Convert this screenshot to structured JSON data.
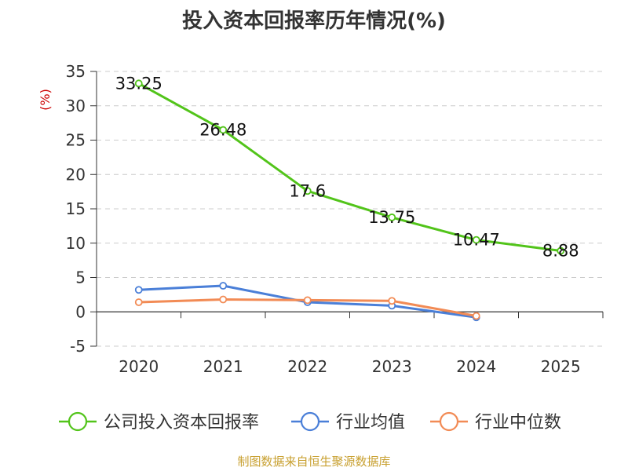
{
  "chart_data": {
    "type": "line",
    "title": "投入资本回报率历年情况(%)",
    "ylabel": "(%)",
    "categories": [
      "2020",
      "2021",
      "2022",
      "2023",
      "2024",
      "2025"
    ],
    "ylim": [
      -5,
      35
    ],
    "yticks": [
      -5,
      0,
      5,
      10,
      15,
      20,
      25,
      30,
      35
    ],
    "grid": true,
    "legend_position": "bottom",
    "series": [
      {
        "name": "公司投入资本回报率",
        "color": "#52c41a",
        "values": [
          33.25,
          26.48,
          17.6,
          13.75,
          10.47,
          8.88
        ],
        "show_labels": true
      },
      {
        "name": "行业均值",
        "color": "#4a7fd8",
        "values": [
          3.2,
          3.8,
          1.4,
          0.9,
          -0.8,
          null
        ],
        "show_labels": false
      },
      {
        "name": "行业中位数",
        "color": "#f28b55",
        "values": [
          1.4,
          1.8,
          1.7,
          1.6,
          -0.6,
          null
        ],
        "show_labels": false
      }
    ]
  },
  "source": "制图数据来自恒生聚源数据库"
}
